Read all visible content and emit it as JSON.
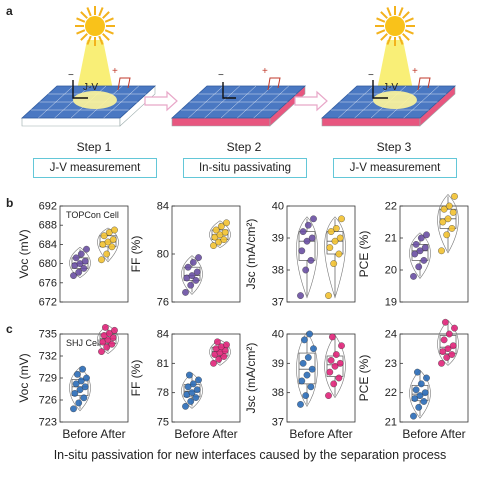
{
  "labels": {
    "a": "a",
    "b": "b",
    "c": "c"
  },
  "steps": [
    {
      "title": "Step 1",
      "box": "J-V measurement",
      "sun": true,
      "pink": false
    },
    {
      "title": "Step 2",
      "box": "In-situ passivating",
      "sun": false,
      "pink": true
    },
    {
      "title": "Step 3",
      "box": "J-V measurement",
      "sun": true,
      "pink": true
    }
  ],
  "jv_label": "J-V",
  "plus_sign": "+",
  "minus_sign": "−",
  "colors": {
    "before_topcon": "#6a4fa3",
    "after_topcon": "#f2c230",
    "before_shj": "#2b6cb8",
    "after_shj": "#e0247a",
    "cell_blue": "#4a78c2",
    "pink": "#e7567f",
    "arrow": "#e8a7c8",
    "box": "#63c7d8"
  },
  "caption": "In-situ passivation for new interfaces caused by the separation process",
  "chart_data": [
    {
      "type": "box",
      "row": "b",
      "panel_label": "TOPCon Cell",
      "ylabel": "Voc (mV)",
      "ylim": [
        672,
        692
      ],
      "yticks": [
        "672",
        "676",
        "680",
        "684",
        "688",
        "692"
      ],
      "categories": [
        "Before",
        "After"
      ],
      "series": [
        {
          "name": "Before",
          "values": [
            677.5,
            678.2,
            679.0,
            679.6,
            680.0,
            680.5,
            681.2,
            682.0,
            683.0
          ]
        },
        {
          "name": "After",
          "values": [
            680.8,
            682.0,
            683.5,
            684.0,
            684.5,
            685.0,
            685.8,
            686.5,
            687.0
          ]
        }
      ]
    },
    {
      "type": "box",
      "row": "b",
      "ylabel": "FF (%)",
      "ylim": [
        76,
        84
      ],
      "yticks": [
        "76",
        "80",
        "84"
      ],
      "categories": [
        "Before",
        "After"
      ],
      "series": [
        {
          "name": "Before",
          "values": [
            76.8,
            77.4,
            77.8,
            78.0,
            78.2,
            78.5,
            78.9,
            79.3,
            79.7
          ]
        },
        {
          "name": "After",
          "values": [
            80.7,
            81.0,
            81.2,
            81.4,
            81.6,
            81.8,
            82.0,
            82.3,
            82.6
          ]
        }
      ]
    },
    {
      "type": "box",
      "row": "b",
      "ylabel": "Jsc (mA/cm²)",
      "ylim": [
        37,
        40
      ],
      "yticks": [
        "37",
        "38",
        "39",
        "40"
      ],
      "categories": [
        "Before",
        "After"
      ],
      "series": [
        {
          "name": "Before",
          "values": [
            37.2,
            38.0,
            38.3,
            38.6,
            38.9,
            39.0,
            39.2,
            39.4,
            39.6
          ]
        },
        {
          "name": "After",
          "values": [
            37.2,
            38.2,
            38.5,
            38.7,
            38.9,
            39.0,
            39.2,
            39.3,
            39.6
          ]
        }
      ]
    },
    {
      "type": "box",
      "row": "b",
      "ylabel": "PCE (%)",
      "ylim": [
        19,
        22
      ],
      "yticks": [
        "19",
        "20",
        "21",
        "22"
      ],
      "categories": [
        "Before",
        "After"
      ],
      "series": [
        {
          "name": "Before",
          "values": [
            19.8,
            20.1,
            20.3,
            20.5,
            20.6,
            20.7,
            20.8,
            21.0,
            21.1
          ]
        },
        {
          "name": "After",
          "values": [
            20.6,
            21.1,
            21.3,
            21.5,
            21.6,
            21.8,
            21.9,
            22.0,
            22.3
          ]
        }
      ]
    },
    {
      "type": "box",
      "row": "c",
      "panel_label": "SHJ Cell",
      "ylabel": "Voc (mV)",
      "ylim": [
        723,
        735
      ],
      "yticks": [
        "723",
        "726",
        "729",
        "732",
        "735"
      ],
      "categories": [
        "Before",
        "After"
      ],
      "series": [
        {
          "name": "Before",
          "values": [
            724.8,
            725.6,
            726.3,
            726.9,
            727.4,
            727.8,
            728.2,
            728.6,
            729.0,
            729.5,
            730.2
          ]
        },
        {
          "name": "After",
          "values": [
            732.6,
            733.2,
            733.6,
            733.9,
            734.2,
            734.5,
            734.8,
            735.1,
            735.5,
            735.9
          ]
        }
      ]
    },
    {
      "type": "box",
      "row": "c",
      "ylabel": "FF (%)",
      "ylim": [
        75,
        84
      ],
      "yticks": [
        "75",
        "78",
        "81",
        "84"
      ],
      "categories": [
        "Before",
        "After"
      ],
      "series": [
        {
          "name": "Before",
          "values": [
            76.6,
            77.1,
            77.5,
            77.8,
            78.0,
            78.3,
            78.6,
            78.9,
            79.3,
            79.8
          ]
        },
        {
          "name": "After",
          "values": [
            81.0,
            81.4,
            81.7,
            81.9,
            82.1,
            82.3,
            82.5,
            82.7,
            82.9,
            83.2
          ]
        }
      ]
    },
    {
      "type": "box",
      "row": "c",
      "ylabel": "Jsc (mA/cm²)",
      "ylim": [
        37,
        40
      ],
      "yticks": [
        "37",
        "38",
        "39",
        "40"
      ],
      "categories": [
        "Before",
        "After"
      ],
      "series": [
        {
          "name": "Before",
          "values": [
            37.6,
            37.9,
            38.2,
            38.4,
            38.6,
            38.8,
            39.0,
            39.2,
            39.5,
            39.8,
            40.0
          ]
        },
        {
          "name": "After",
          "values": [
            37.9,
            38.3,
            38.5,
            38.7,
            38.9,
            39.0,
            39.1,
            39.3,
            39.6,
            39.9
          ]
        }
      ]
    },
    {
      "type": "box",
      "row": "c",
      "ylabel": "PCE (%)",
      "ylim": [
        21,
        24
      ],
      "yticks": [
        "21",
        "22",
        "23",
        "24"
      ],
      "categories": [
        "Before",
        "After"
      ],
      "series": [
        {
          "name": "Before",
          "values": [
            21.2,
            21.5,
            21.7,
            21.8,
            21.9,
            22.0,
            22.1,
            22.3,
            22.5,
            22.7
          ]
        },
        {
          "name": "After",
          "values": [
            23.0,
            23.2,
            23.3,
            23.4,
            23.5,
            23.6,
            23.8,
            24.0,
            24.2,
            24.4
          ]
        }
      ]
    }
  ],
  "xtick_label": "Before After"
}
